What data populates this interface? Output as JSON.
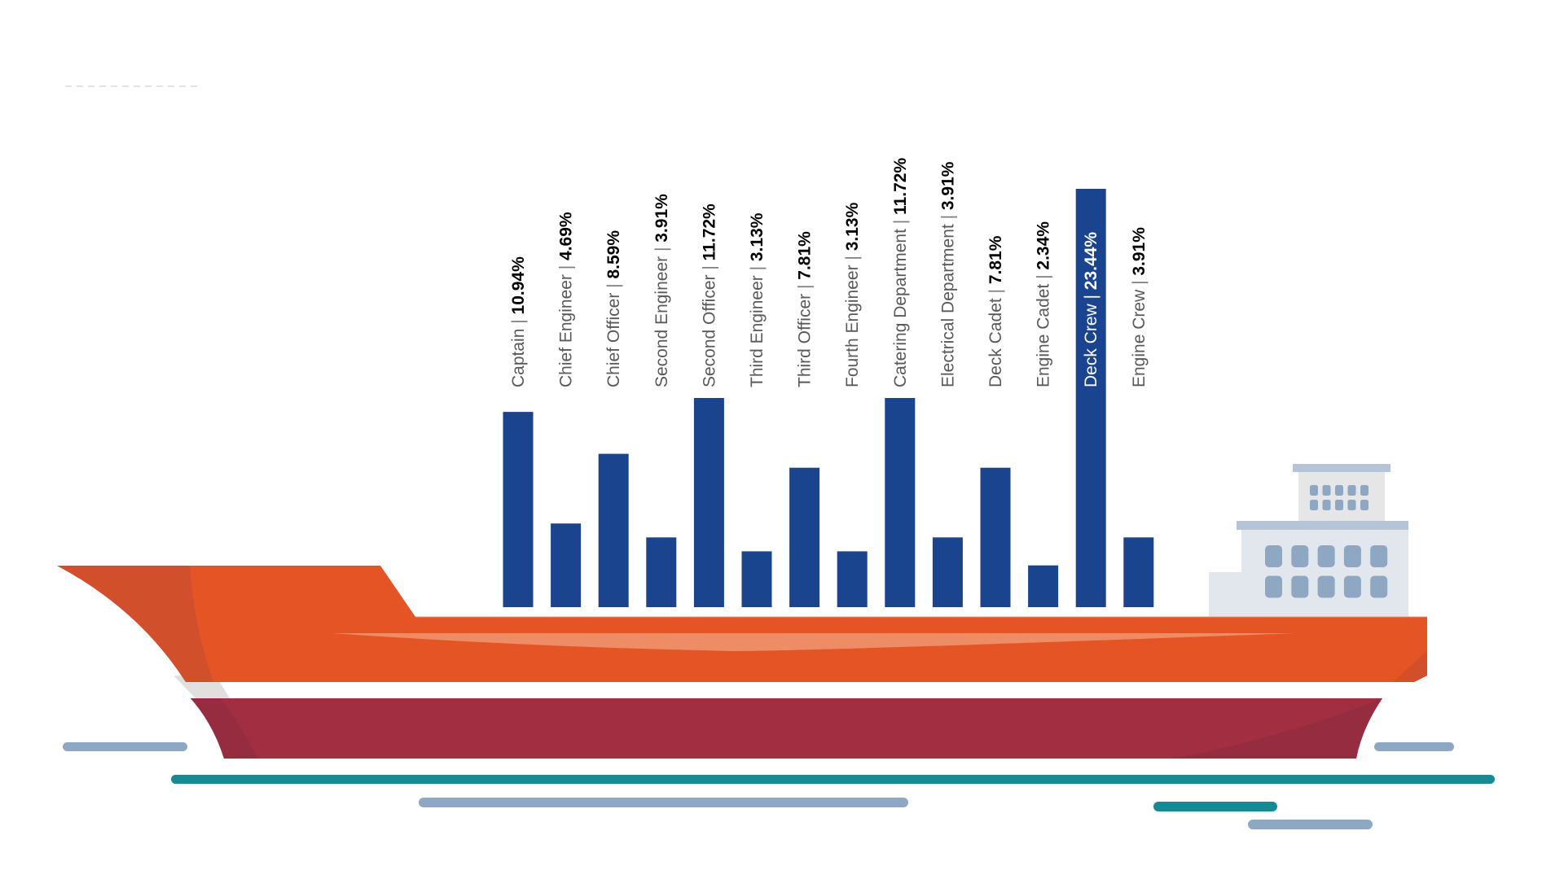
{
  "chart_data": {
    "type": "bar",
    "title": "",
    "xlabel": "",
    "ylabel": "",
    "ylim": [
      0,
      24
    ],
    "grid": false,
    "legend": "none",
    "unit": "%",
    "categories": [
      "Captain",
      "Chief Engineer",
      "Chief Officer",
      "Second Engineer",
      "Second Officer",
      "Third Engineer",
      "Third Officer",
      "Fourth Engineer",
      "Catering Department",
      "Electrical Department",
      "Deck Cadet",
      "Engine Cadet",
      "Deck Crew",
      "Engine Crew"
    ],
    "values": [
      10.94,
      4.69,
      8.59,
      3.91,
      11.72,
      3.13,
      7.81,
      3.13,
      11.72,
      3.91,
      7.81,
      2.34,
      23.44,
      3.91
    ],
    "value_labels": [
      "10.94%",
      "4.69%",
      "8.59%",
      "3.91%",
      "11.72%",
      "3.13%",
      "7.81%",
      "3.13%",
      "11.72%",
      "3.91%",
      "7.81%",
      "2.34%",
      "23.44%",
      "3.91%"
    ],
    "separator": "|",
    "colors": {
      "bar": "#1a448e",
      "label_text": "#595959",
      "value_text": "#000000"
    }
  },
  "illustration": {
    "subject": "cargo-ship",
    "colors": {
      "hull_upper": "#e45424",
      "hull_upper_shade": "#d24f2c",
      "hull_lower": "#a22e41",
      "hull_lower_shade": "#952c3f",
      "hull_stripe": "#ffffff",
      "highlight": "#ee8c66",
      "superstructure": "#e2e7ee",
      "superstructure_top": "#e6e6e8",
      "roof": "#b5c5d7",
      "window": "#8ea8c3",
      "water_teal": "#178a93",
      "water_blue": "#8ea8c3"
    }
  }
}
